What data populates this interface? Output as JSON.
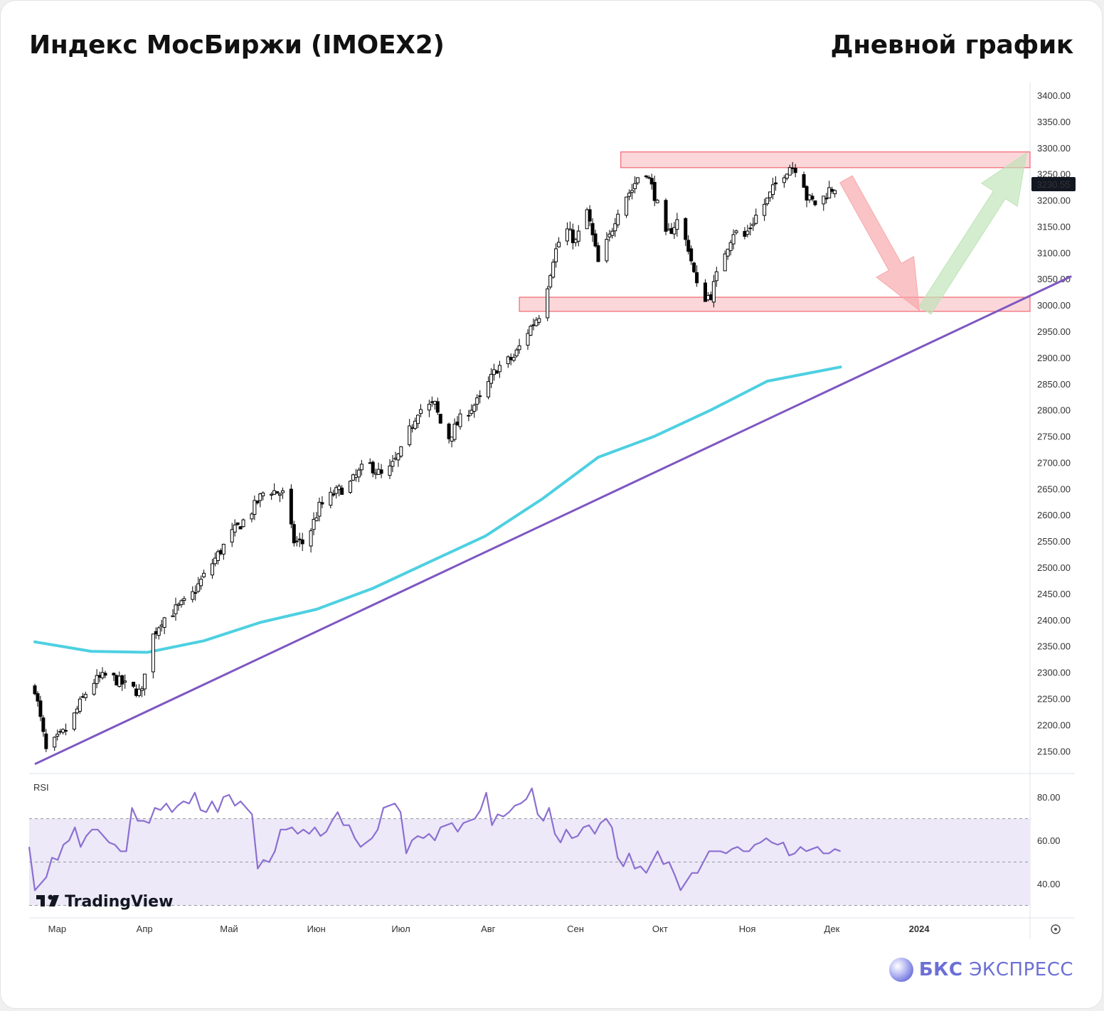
{
  "header": {
    "title": "Индекс МосБиржи (IMOEX2)",
    "timeframe": "Дневной график"
  },
  "brand": {
    "name_bold": "БКС",
    "name_rest": " ЭКСПРЕСС"
  },
  "watermark": "TradingView",
  "colors": {
    "up": "#ffffff",
    "down": "#000000",
    "ma": "#4dd0e1",
    "trendline": "#7e57c2",
    "zone_fill": "#f7b6bb",
    "zone_stroke": "#f06670",
    "arrow_down": "#f7a5a8",
    "arrow_up": "#bde3b5",
    "rsi_line": "#8c6fd1",
    "rsi_band": "#ede9f8"
  },
  "chart_data": [
    {
      "type": "candlestick",
      "title": "Индекс МосБиржи (IMOEX2)",
      "x_labels": [
        "Мар",
        "Апр",
        "Май",
        "Июн",
        "Июл",
        "Авг",
        "Сен",
        "Окт",
        "Ноя",
        "Дек",
        "2024"
      ],
      "y_ticks": [
        "3400.00",
        "3350.00",
        "3300.00",
        "3250.00",
        "3200.00",
        "3150.00",
        "3100.00",
        "3050.00",
        "3000.00",
        "2950.00",
        "2900.00",
        "2850.00",
        "2800.00",
        "2750.00",
        "2700.00",
        "2650.00",
        "2600.00",
        "2550.00",
        "2500.00",
        "2450.00",
        "2400.00",
        "2350.00",
        "2300.00",
        "2250.00",
        "2200.00",
        "2150.00"
      ],
      "ylim": [
        2120,
        3420
      ],
      "last_price": "3230.55",
      "close_path": [
        {
          "d": 0,
          "v": 2270
        },
        {
          "d": 4,
          "v": 2150
        },
        {
          "d": 12,
          "v": 2195
        },
        {
          "d": 16,
          "v": 2240
        },
        {
          "d": 20,
          "v": 2280
        },
        {
          "d": 26,
          "v": 2295
        },
        {
          "d": 32,
          "v": 2275
        },
        {
          "d": 38,
          "v": 2260
        },
        {
          "d": 40,
          "v": 2350
        },
        {
          "d": 45,
          "v": 2400
        },
        {
          "d": 55,
          "v": 2440
        },
        {
          "d": 62,
          "v": 2500
        },
        {
          "d": 70,
          "v": 2565
        },
        {
          "d": 76,
          "v": 2600
        },
        {
          "d": 82,
          "v": 2650
        },
        {
          "d": 88,
          "v": 2640
        },
        {
          "d": 92,
          "v": 2550
        },
        {
          "d": 96,
          "v": 2545
        },
        {
          "d": 101,
          "v": 2615
        },
        {
          "d": 106,
          "v": 2640
        },
        {
          "d": 112,
          "v": 2660
        },
        {
          "d": 118,
          "v": 2700
        },
        {
          "d": 124,
          "v": 2670
        },
        {
          "d": 130,
          "v": 2720
        },
        {
          "d": 136,
          "v": 2800
        },
        {
          "d": 142,
          "v": 2810
        },
        {
          "d": 146,
          "v": 2740
        },
        {
          "d": 152,
          "v": 2790
        },
        {
          "d": 158,
          "v": 2820
        },
        {
          "d": 164,
          "v": 2880
        },
        {
          "d": 170,
          "v": 2900
        },
        {
          "d": 175,
          "v": 2950
        },
        {
          "d": 180,
          "v": 2990
        },
        {
          "d": 184,
          "v": 3090
        },
        {
          "d": 188,
          "v": 3150
        },
        {
          "d": 192,
          "v": 3120
        },
        {
          "d": 196,
          "v": 3180
        },
        {
          "d": 200,
          "v": 3080
        },
        {
          "d": 204,
          "v": 3130
        },
        {
          "d": 208,
          "v": 3200
        },
        {
          "d": 212,
          "v": 3220
        },
        {
          "d": 216,
          "v": 3270
        },
        {
          "d": 220,
          "v": 3210
        },
        {
          "d": 224,
          "v": 3130
        },
        {
          "d": 228,
          "v": 3160
        },
        {
          "d": 232,
          "v": 3110
        },
        {
          "d": 236,
          "v": 3010
        },
        {
          "d": 240,
          "v": 3020
        },
        {
          "d": 244,
          "v": 3090
        },
        {
          "d": 248,
          "v": 3140
        },
        {
          "d": 252,
          "v": 3130
        },
        {
          "d": 256,
          "v": 3170
        },
        {
          "d": 260,
          "v": 3200
        },
        {
          "d": 264,
          "v": 3240
        },
        {
          "d": 268,
          "v": 3265
        },
        {
          "d": 272,
          "v": 3260
        },
        {
          "d": 274,
          "v": 3205
        },
        {
          "d": 278,
          "v": 3190
        },
        {
          "d": 282,
          "v": 3220
        },
        {
          "d": 286,
          "v": 3230
        }
      ],
      "ma_path": [
        {
          "d": 0,
          "v": 2358
        },
        {
          "d": 20,
          "v": 2340
        },
        {
          "d": 40,
          "v": 2338
        },
        {
          "d": 60,
          "v": 2360
        },
        {
          "d": 80,
          "v": 2395
        },
        {
          "d": 100,
          "v": 2420
        },
        {
          "d": 120,
          "v": 2460
        },
        {
          "d": 140,
          "v": 2510
        },
        {
          "d": 160,
          "v": 2560
        },
        {
          "d": 180,
          "v": 2630
        },
        {
          "d": 200,
          "v": 2710
        },
        {
          "d": 220,
          "v": 2750
        },
        {
          "d": 240,
          "v": 2800
        },
        {
          "d": 260,
          "v": 2855
        },
        {
          "d": 286,
          "v": 2882
        }
      ],
      "trendline": [
        {
          "d": 0,
          "v": 2125
        },
        {
          "d": 368,
          "v": 3055
        }
      ],
      "resistance_zone": {
        "from_d": 208,
        "to_d": 368,
        "low": 3262,
        "high": 3292
      },
      "support_zone": {
        "from_d": 172,
        "to_d": 368,
        "low": 2988,
        "high": 3015
      },
      "arrow_down": {
        "from_d": 288,
        "to_d": 314,
        "from_v": 3240,
        "to_v": 2990
      },
      "arrow_up": {
        "from_d": 316,
        "to_d": 352,
        "from_v": 2990,
        "to_v": 3290
      }
    },
    {
      "type": "line",
      "title": "RSI",
      "y_ticks": [
        "80.00",
        "60.00",
        "40.00"
      ],
      "ylim": [
        28,
        86
      ],
      "band": [
        30,
        70
      ],
      "midline": 50,
      "values": [
        57,
        37,
        40,
        43,
        52,
        51,
        58,
        60,
        66,
        57,
        62,
        65,
        65,
        62,
        59,
        58,
        55,
        55,
        75,
        69,
        69,
        68,
        75,
        74,
        77,
        73,
        76,
        78,
        77,
        82,
        74,
        73,
        78,
        73,
        80,
        81,
        76,
        78,
        75,
        72,
        47,
        51,
        50,
        55,
        65,
        65,
        66,
        63,
        65,
        63,
        66,
        62,
        64,
        69,
        73,
        67,
        67,
        61,
        57,
        59,
        61,
        65,
        75,
        76,
        77,
        73,
        54,
        60,
        62,
        61,
        63,
        60,
        66,
        67,
        68,
        64,
        68,
        69,
        70,
        74,
        82,
        67,
        72,
        71,
        73,
        76,
        77,
        79,
        84,
        72,
        69,
        75,
        63,
        59,
        65,
        61,
        62,
        66,
        67,
        63,
        68,
        70,
        66,
        52,
        48,
        54,
        47,
        48,
        45,
        50,
        55,
        49,
        50,
        44,
        37,
        41,
        45,
        45,
        50,
        55,
        55,
        55,
        54,
        56,
        57,
        55,
        55,
        58,
        59,
        61,
        59,
        58,
        59,
        53,
        54,
        57,
        55,
        56,
        57,
        54,
        54,
        56,
        55
      ],
      "x_labels": [
        "Мар",
        "Апр",
        "Май",
        "Июн",
        "Июл",
        "Авг",
        "Сен",
        "Окт",
        "Ноя",
        "Дек",
        "2024"
      ]
    }
  ]
}
